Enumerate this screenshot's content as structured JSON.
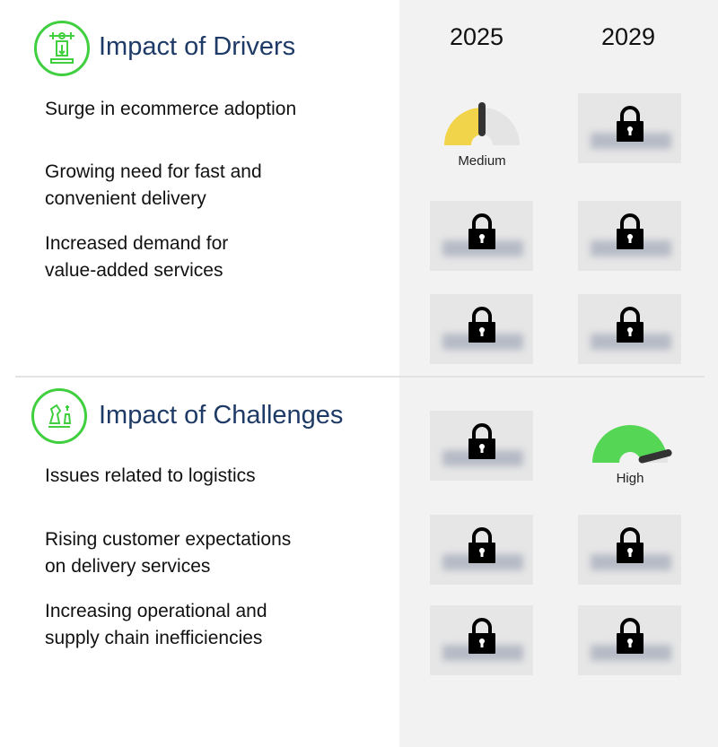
{
  "columns": [
    "2025",
    "2029"
  ],
  "drivers": {
    "title": "Impact of Drivers",
    "icon": "drivers-machine-icon",
    "items": [
      {
        "lines": [
          "Surge in ecommerce adoption"
        ],
        "y2025": {
          "locked": false,
          "level": "Medium",
          "value": 0.5,
          "color": "#f2d44a"
        },
        "y2029": {
          "locked": true
        }
      },
      {
        "lines": [
          "Growing need for fast and",
          "convenient delivery"
        ],
        "y2025": {
          "locked": true
        },
        "y2029": {
          "locked": true
        }
      },
      {
        "lines": [
          "Increased demand for",
          "value-added services"
        ],
        "y2025": {
          "locked": true
        },
        "y2029": {
          "locked": true
        }
      }
    ]
  },
  "challenges": {
    "title": "Impact of Challenges",
    "icon": "chess-pieces-icon",
    "items": [
      {
        "lines": [
          "Issues related to logistics"
        ],
        "y2025": {
          "locked": true
        },
        "y2029": {
          "locked": false,
          "level": "High",
          "value": 0.92,
          "color": "#55d655"
        }
      },
      {
        "lines": [
          "Rising customer expectations",
          "on delivery services"
        ],
        "y2025": {
          "locked": true
        },
        "y2029": {
          "locked": true
        }
      },
      {
        "lines": [
          "Increasing operational and",
          "supply chain inefficiencies"
        ],
        "y2025": {
          "locked": true
        },
        "y2029": {
          "locked": true
        }
      }
    ]
  },
  "colors": {
    "title": "#1e3a66",
    "icon_ring": "#3fcf3f",
    "panel": "#f2f2f2"
  }
}
